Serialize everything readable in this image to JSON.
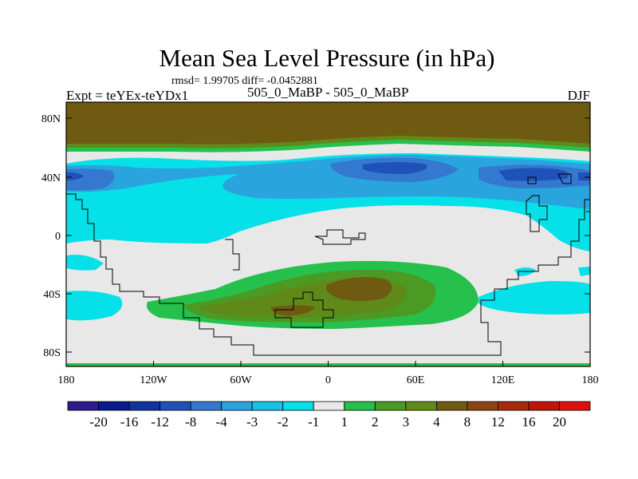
{
  "title": "Mean Sea Level Pressure (in hPa)",
  "stats_line": "rmsd= 1.99705 diff= -0.0452881",
  "left_label": "Expt = teYEx-teYDx1",
  "center_label": "505_0_MaBP - 505_0_MaBP",
  "right_label": "DJF",
  "lat_ticks": [
    "80N",
    "40N",
    "0",
    "40S",
    "80S"
  ],
  "lon_ticks": [
    "180",
    "120W",
    "60W",
    "0",
    "60E",
    "120E",
    "180"
  ],
  "colorbar": {
    "labels": [
      "-20",
      "-16",
      "-12",
      "-8",
      "-4",
      "-3",
      "-2",
      "-1",
      "1",
      "2",
      "3",
      "4",
      "8",
      "12",
      "16",
      "20"
    ],
    "colors": [
      "#2d1a8c",
      "#0b1b8f",
      "#1133a0",
      "#1e52b8",
      "#3478cf",
      "#2aa4dc",
      "#12c3e4",
      "#06e0e8",
      "#e8e8e8",
      "#26c04c",
      "#4a9a24",
      "#5f8a1a",
      "#6e5a10",
      "#8b4510",
      "#a82a0c",
      "#c4140a",
      "#e01010"
    ]
  },
  "colors": {
    "neutral": "#e8e8e8",
    "light_blue": "#06e0e8",
    "mid_blue": "#2aa4dc",
    "blue": "#3478cf",
    "dark_blue": "#1e52b8",
    "green": "#26c04c",
    "dark_green": "#4a9a24",
    "olive": "#5f8a1a",
    "brown": "#6e5a10"
  }
}
